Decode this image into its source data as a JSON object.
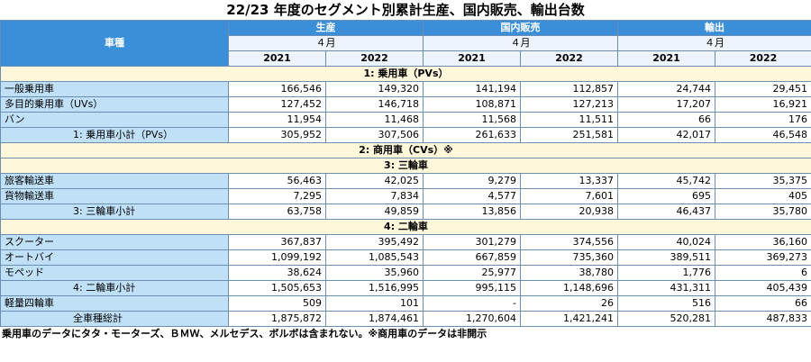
{
  "title": "22/23 年度のセグメント別累計生産、国内販売、輸出台数",
  "header": {
    "category_label": "車種",
    "groups": [
      "生産",
      "国内販売",
      "輸出"
    ],
    "month": "４月",
    "years": [
      "2021",
      "2022"
    ]
  },
  "sections": [
    {
      "title": "1: 乗用車（PVs）",
      "rows": [
        {
          "label": "一般乗用車",
          "values": [
            "166,546",
            "149,320",
            "141,194",
            "112,857",
            "24,744",
            "29,451"
          ]
        },
        {
          "label": "多目的乗用車（UVs）",
          "values": [
            "127,452",
            "146,718",
            "108,871",
            "127,213",
            "17,207",
            "16,921"
          ]
        },
        {
          "label": "バン",
          "values": [
            "11,954",
            "11,468",
            "11,568",
            "11,511",
            "66",
            "176"
          ]
        },
        {
          "label": "1: 乗用車小計（PVs）",
          "subtotal": true,
          "values": [
            "305,952",
            "307,506",
            "261,633",
            "251,581",
            "42,017",
            "46,548"
          ]
        }
      ]
    },
    {
      "title": "2: 商用車（CVs）※",
      "rows": []
    },
    {
      "title": "3: 三輪車",
      "rows": [
        {
          "label": "旅客輸送車",
          "values": [
            "56,463",
            "42,025",
            "9,279",
            "13,337",
            "45,742",
            "35,375"
          ]
        },
        {
          "label": "貨物輸送車",
          "values": [
            "7,295",
            "7,834",
            "4,577",
            "7,601",
            "695",
            "405"
          ]
        },
        {
          "label": "3: 三輪車小計",
          "subtotal": true,
          "values": [
            "63,758",
            "49,859",
            "13,856",
            "20,938",
            "46,437",
            "35,780"
          ]
        }
      ]
    },
    {
      "title": "4: 二輪車",
      "rows": [
        {
          "label": "スクーター",
          "values": [
            "367,837",
            "395,492",
            "301,279",
            "374,556",
            "40,024",
            "36,160"
          ]
        },
        {
          "label": "オートバイ",
          "values": [
            "1,099,192",
            "1,085,543",
            "667,859",
            "735,360",
            "389,511",
            "369,273"
          ]
        },
        {
          "label": "モペッド",
          "values": [
            "38,624",
            "35,960",
            "25,977",
            "38,780",
            "1,776",
            "6"
          ]
        },
        {
          "label": "4: 二輪車小計",
          "subtotal": true,
          "values": [
            "1,505,653",
            "1,516,995",
            "995,115",
            "1,148,696",
            "431,311",
            "405,439"
          ]
        }
      ]
    }
  ],
  "extra_rows": [
    {
      "label": "軽量四輪車",
      "values": [
        "509",
        "101",
        "-",
        "26",
        "516",
        "66"
      ]
    },
    {
      "label": "全車種総計",
      "subtotal": true,
      "values": [
        "1,875,872",
        "1,874,461",
        "1,270,604",
        "1,421,241",
        "520,281",
        "487,833"
      ]
    }
  ],
  "footnote": "乗用車のデータにタタ・モーターズ、ＢＭＷ、メルセデス、ボルボは含まれない。※商用車のデータは非開示"
}
